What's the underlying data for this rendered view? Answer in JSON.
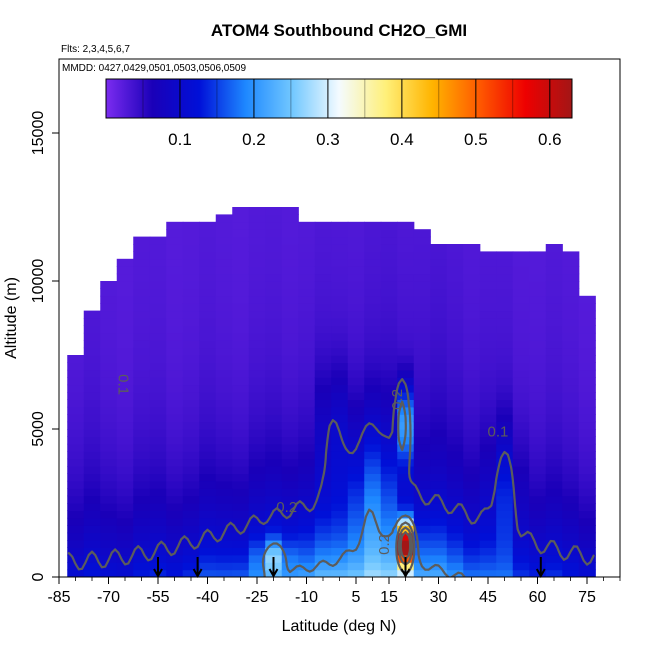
{
  "chart_data": {
    "type": "heatmap",
    "title": "ATOM4 Southbound CH2O_GMI",
    "flights_note": "Flts: 2,3,4,5,6,7",
    "dates_note": "MMDD: 0427,0429,0501,0503,0506,0509",
    "xlabel": "Latitude (deg N)",
    "ylabel": "Altitude (m)",
    "xlim": [
      -85,
      85
    ],
    "ylim": [
      0,
      17500
    ],
    "x_ticks": [
      -85,
      -70,
      -55,
      -40,
      -25,
      -10,
      5,
      15,
      30,
      45,
      60,
      75
    ],
    "y_ticks": [
      0,
      5000,
      10000,
      15000
    ],
    "colorbar": {
      "range": [
        0,
        0.63
      ],
      "ticks": [
        0.1,
        0.2,
        0.3,
        0.4,
        0.5,
        0.6
      ],
      "colors": [
        "#7b2cf0",
        "#1a00b8",
        "#0010d8",
        "#1e88ff",
        "#72c8ff",
        "#f4fbff",
        "#fff07a",
        "#ffb400",
        "#ff5a00",
        "#ee0000",
        "#a31616"
      ]
    },
    "contour_labels": [
      {
        "text": "0.1",
        "lat": -67,
        "alt": 6500,
        "angle": 90
      },
      {
        "text": "0.1",
        "lat": 48,
        "alt": 4750,
        "angle": 0
      },
      {
        "text": "0.2",
        "lat": -16,
        "alt": 2200,
        "angle": 0
      },
      {
        "text": "0.2",
        "lat": 15,
        "alt": 1100,
        "angle": -90
      },
      {
        "text": "0.2",
        "lat": 19,
        "alt": 6000,
        "angle": -90
      }
    ],
    "arrows_lat": [
      -55,
      -43,
      -20,
      20,
      61
    ],
    "profile_top_alt": [
      [
        -80,
        7500
      ],
      [
        -75,
        9000
      ],
      [
        -70,
        10000
      ],
      [
        -65,
        10700
      ],
      [
        -60,
        11300
      ],
      [
        -55,
        11400
      ],
      [
        -50,
        11900
      ],
      [
        -45,
        12000
      ],
      [
        -40,
        12000
      ],
      [
        -35,
        12200
      ],
      [
        -30,
        12400
      ],
      [
        -25,
        12400
      ],
      [
        -20,
        12400
      ],
      [
        -15,
        12400
      ],
      [
        -10,
        12000
      ],
      [
        -5,
        12000
      ],
      [
        0,
        12000
      ],
      [
        5,
        12000
      ],
      [
        10,
        12000
      ],
      [
        15,
        12000
      ],
      [
        20,
        12000
      ],
      [
        25,
        11600
      ],
      [
        30,
        11200
      ],
      [
        35,
        11100
      ],
      [
        40,
        11100
      ],
      [
        45,
        11000
      ],
      [
        50,
        11000
      ],
      [
        55,
        11000
      ],
      [
        60,
        11000
      ],
      [
        65,
        11200
      ],
      [
        70,
        11000
      ],
      [
        75,
        9500
      ]
    ]
  }
}
